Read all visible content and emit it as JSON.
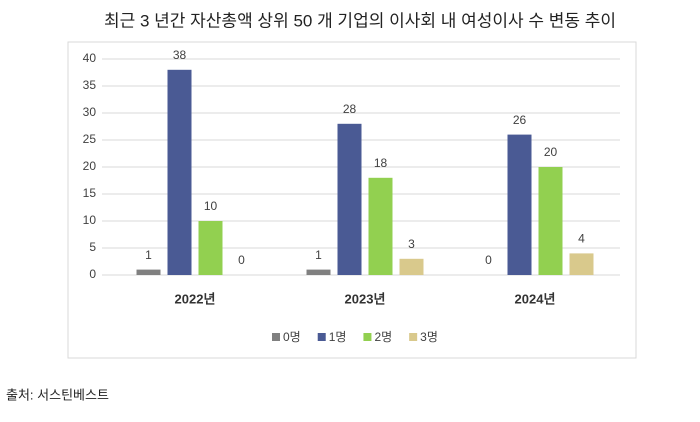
{
  "chart_data": {
    "type": "bar",
    "title": "최근 3 년간 자산총액 상위 50 개 기업의 이사회 내 여성이사 수 변동 추이",
    "categories": [
      "2022년",
      "2023년",
      "2024년"
    ],
    "series": [
      {
        "name": "0명",
        "color": "#808080",
        "values": [
          1,
          1,
          0
        ]
      },
      {
        "name": "1명",
        "color": "#4a5a94",
        "values": [
          38,
          28,
          26
        ]
      },
      {
        "name": "2명",
        "color": "#92d050",
        "values": [
          10,
          18,
          20
        ]
      },
      {
        "name": "3명",
        "color": "#d9c98c",
        "values": [
          0,
          3,
          4
        ]
      }
    ],
    "ylim": [
      0,
      40
    ],
    "yticks": [
      0,
      5,
      10,
      15,
      20,
      25,
      30,
      35,
      40
    ],
    "grid": true,
    "legend": "bottom",
    "source": "출처: 서스틴베스트"
  }
}
